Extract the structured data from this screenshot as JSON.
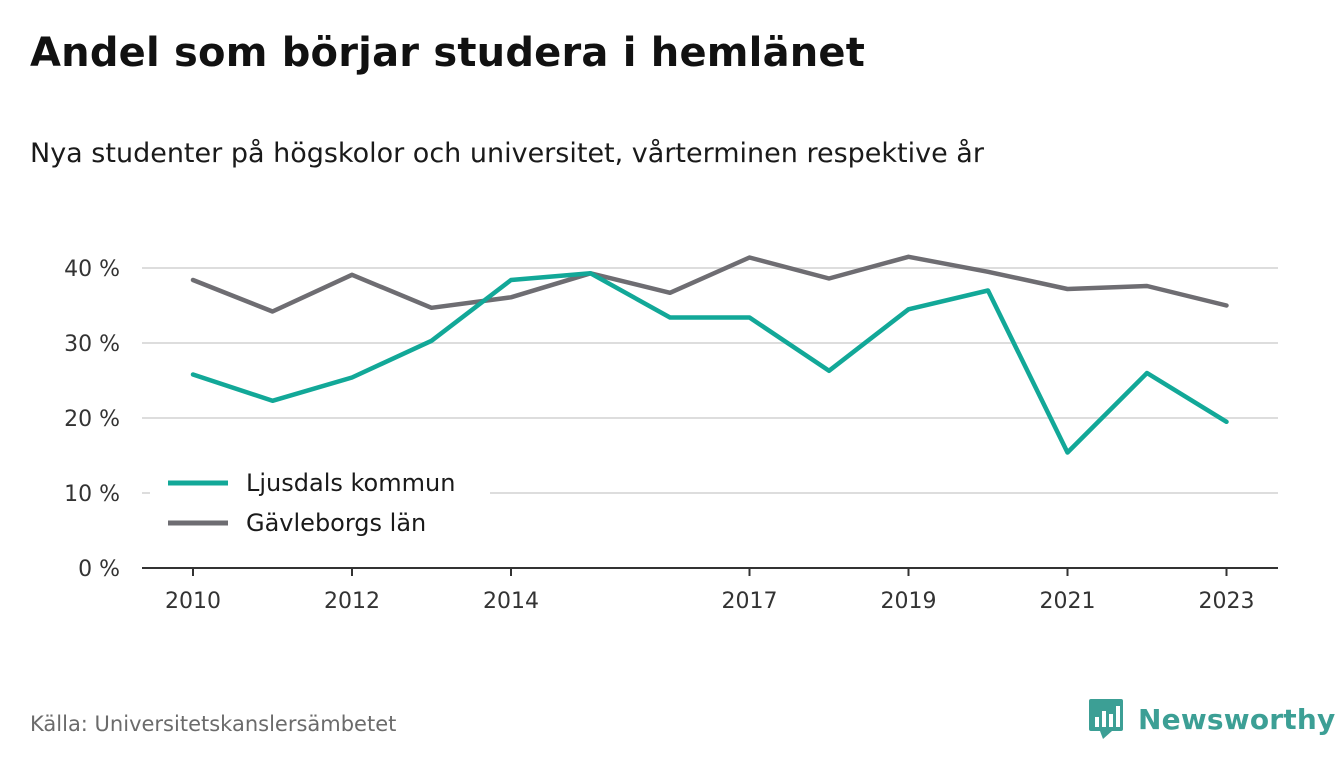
{
  "title": "Andel som börjar studera i hemlänet",
  "subtitle": "Nya studenter på högskolor och universitet, vårterminen respektive år",
  "source": "Källa: Universitetskanslersämbetet",
  "brand": {
    "name": "Newsworthy",
    "logo_icon": "bar-chart-speech-bubble-icon",
    "color": "#3c9f95"
  },
  "chart_data": {
    "type": "line",
    "x": [
      2010,
      2011,
      2012,
      2013,
      2014,
      2015,
      2016,
      2017,
      2018,
      2019,
      2020,
      2021,
      2022,
      2023
    ],
    "x_tick_labels": [
      "2010",
      "2012",
      "2014",
      "2017",
      "2019",
      "2021",
      "2023"
    ],
    "y_tick_labels": [
      "0 %",
      "10 %",
      "20 %",
      "30 %",
      "40 %"
    ],
    "y_ticks": [
      0,
      10,
      20,
      30,
      40
    ],
    "ylim": [
      0,
      40
    ],
    "grid": true,
    "legend_position": "bottom-left",
    "series": [
      {
        "name": "Ljusdals kommun",
        "color": "#12a898",
        "values": [
          25.8,
          22.3,
          25.4,
          30.3,
          38.4,
          39.3,
          33.4,
          33.4,
          26.3,
          34.5,
          37.0,
          15.4,
          26.0,
          19.5
        ]
      },
      {
        "name": "Gävleborgs län",
        "color": "#6e6d72",
        "values": [
          38.4,
          34.2,
          39.1,
          34.7,
          36.1,
          39.3,
          36.7,
          41.4,
          38.6,
          41.5,
          39.5,
          37.2,
          37.6,
          35.0
        ]
      }
    ]
  }
}
